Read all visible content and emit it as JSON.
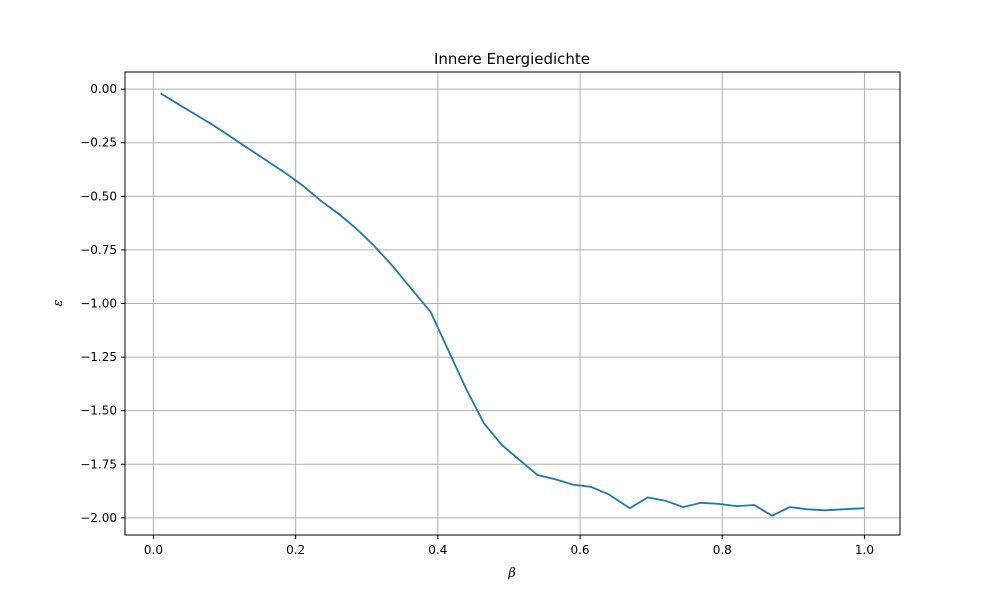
{
  "chart_data": {
    "type": "line",
    "title": "Innere Energiedichte",
    "xlabel": "β",
    "ylabel": "ε",
    "xlim": [
      -0.04,
      1.05
    ],
    "ylim": [
      -2.08,
      0.08
    ],
    "xticks": [
      0.0,
      0.2,
      0.4,
      0.6,
      0.8,
      1.0
    ],
    "xtick_labels": [
      "0.0",
      "0.2",
      "0.4",
      "0.6",
      "0.8",
      "1.0"
    ],
    "yticks": [
      0.0,
      -0.25,
      -0.5,
      -0.75,
      -1.0,
      -1.25,
      -1.5,
      -1.75,
      -2.0
    ],
    "ytick_labels": [
      "0.00",
      "−0.25",
      "−0.50",
      "−0.75",
      "−1.00",
      "−1.25",
      "−1.50",
      "−1.75",
      "−2.00"
    ],
    "grid": true,
    "line_color": "#1f77b4",
    "series": [
      {
        "x": [
          0.01,
          0.035,
          0.06,
          0.085,
          0.11,
          0.135,
          0.16,
          0.185,
          0.21,
          0.235,
          0.26,
          0.285,
          0.31,
          0.335,
          0.36,
          0.39,
          0.415,
          0.44,
          0.465,
          0.49,
          0.515,
          0.54,
          0.565,
          0.59,
          0.615,
          0.64,
          0.67,
          0.695,
          0.72,
          0.745,
          0.77,
          0.795,
          0.82,
          0.845,
          0.87,
          0.895,
          0.92,
          0.945,
          0.97,
          1.0
        ],
        "values": [
          -0.02,
          -0.07,
          -0.12,
          -0.17,
          -0.225,
          -0.28,
          -0.335,
          -0.39,
          -0.45,
          -0.52,
          -0.58,
          -0.65,
          -0.73,
          -0.82,
          -0.92,
          -1.04,
          -1.22,
          -1.4,
          -1.56,
          -1.66,
          -1.73,
          -1.8,
          -1.82,
          -1.845,
          -1.855,
          -1.89,
          -1.955,
          -1.905,
          -1.92,
          -1.95,
          -1.93,
          -1.935,
          -1.945,
          -1.94,
          -1.99,
          -1.95,
          -1.96,
          -1.965,
          -1.96,
          -1.955
        ]
      }
    ]
  }
}
